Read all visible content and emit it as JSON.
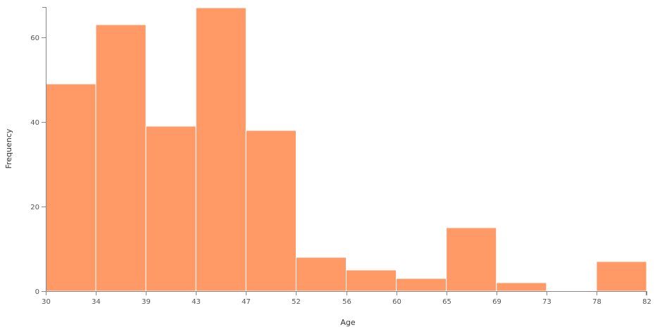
{
  "chart_data": {
    "type": "bar",
    "xlabel": "Age",
    "ylabel": "Frequency",
    "bar_color": "#FF9966",
    "x_ticks": [
      "30",
      "34",
      "39",
      "43",
      "47",
      "52",
      "56",
      "60",
      "65",
      "69",
      "73",
      "78",
      "82"
    ],
    "y_ticks": [
      "0",
      "20",
      "40",
      "60"
    ],
    "ylim": [
      0,
      67
    ],
    "values": [
      49,
      63,
      39,
      67,
      38,
      8,
      5,
      3,
      15,
      2,
      0,
      7
    ],
    "grid": false
  }
}
